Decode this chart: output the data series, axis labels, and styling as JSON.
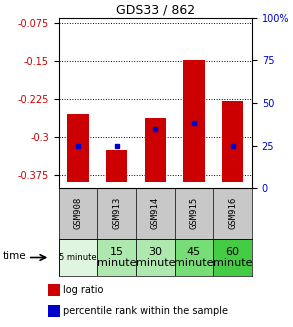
{
  "title": "GDS33 / 862",
  "samples": [
    "GSM908",
    "GSM913",
    "GSM914",
    "GSM915",
    "GSM916"
  ],
  "time_labels": [
    "5 minute",
    "15\nminute",
    "30\nminute",
    "45\nminute",
    "60\nminute"
  ],
  "time_colors": [
    "#e0f5e0",
    "#aee8ae",
    "#aee8ae",
    "#77dd77",
    "#44cc44"
  ],
  "log_ratios": [
    -0.255,
    -0.325,
    -0.262,
    -0.148,
    -0.228
  ],
  "bar_bottoms": [
    -0.388,
    -0.388,
    -0.388,
    -0.388,
    -0.388
  ],
  "percentile_values": [
    -0.318,
    -0.318,
    -0.284,
    -0.272,
    -0.318
  ],
  "ylim": [
    -0.4,
    -0.065
  ],
  "yticks_left": [
    -0.375,
    -0.3,
    -0.225,
    -0.15,
    -0.075
  ],
  "yticks_right": [
    0,
    25,
    50,
    75,
    100
  ],
  "bar_color": "#cc0000",
  "dot_color": "#0000cc",
  "bar_width": 0.55,
  "bg_plot": "#ffffff",
  "bg_sample": "#c8c8c8",
  "left_label_color": "#cc0000",
  "right_label_color": "#0000cc"
}
